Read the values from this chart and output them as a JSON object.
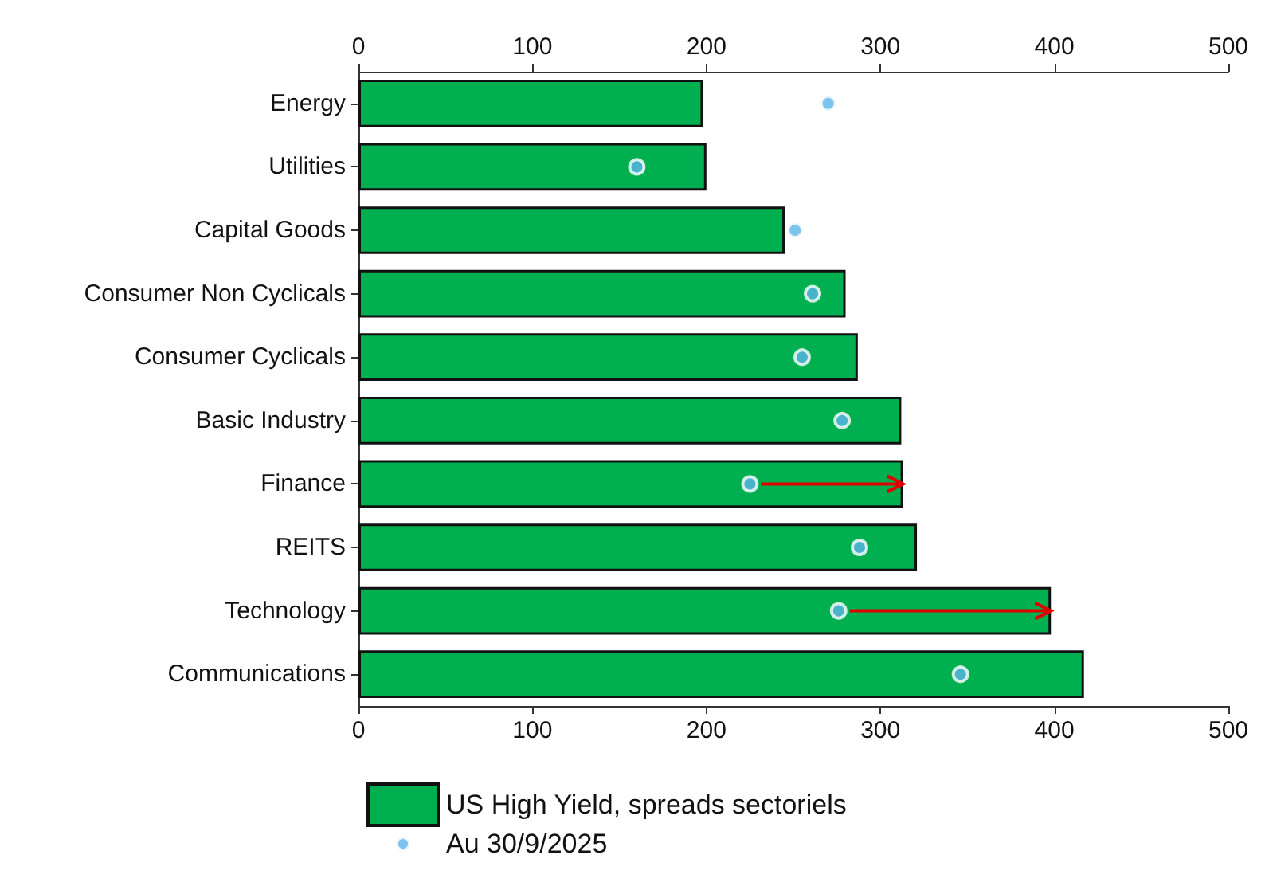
{
  "chart_data": {
    "type": "bar",
    "orientation": "horizontal",
    "categories": [
      "Energy",
      "Utilities",
      "Capital Goods",
      "Consumer Non Cyclicals",
      "Consumer Cyclicals",
      "Basic Industry",
      "Finance",
      "REITS",
      "Technology",
      "Communications"
    ],
    "series": [
      {
        "name": "US High Yield, spreads sectoriels",
        "color": "#00b050",
        "values": [
          198,
          200,
          245,
          280,
          287,
          312,
          313,
          321,
          398,
          417
        ]
      },
      {
        "type": "scatter",
        "name": "Au 30/9/2025",
        "color": "#5bb4ea",
        "values": [
          270,
          160,
          251,
          261,
          255,
          278,
          225,
          288,
          276,
          346
        ]
      }
    ],
    "xlim": [
      0,
      500
    ],
    "xticks": [
      0,
      100,
      200,
      300,
      400,
      500
    ],
    "x2lim": [
      0,
      500
    ],
    "x2ticks": [
      0,
      100,
      200,
      300,
      400,
      500
    ],
    "legend": "bottom",
    "grid": false,
    "marker": "circle"
  }
}
